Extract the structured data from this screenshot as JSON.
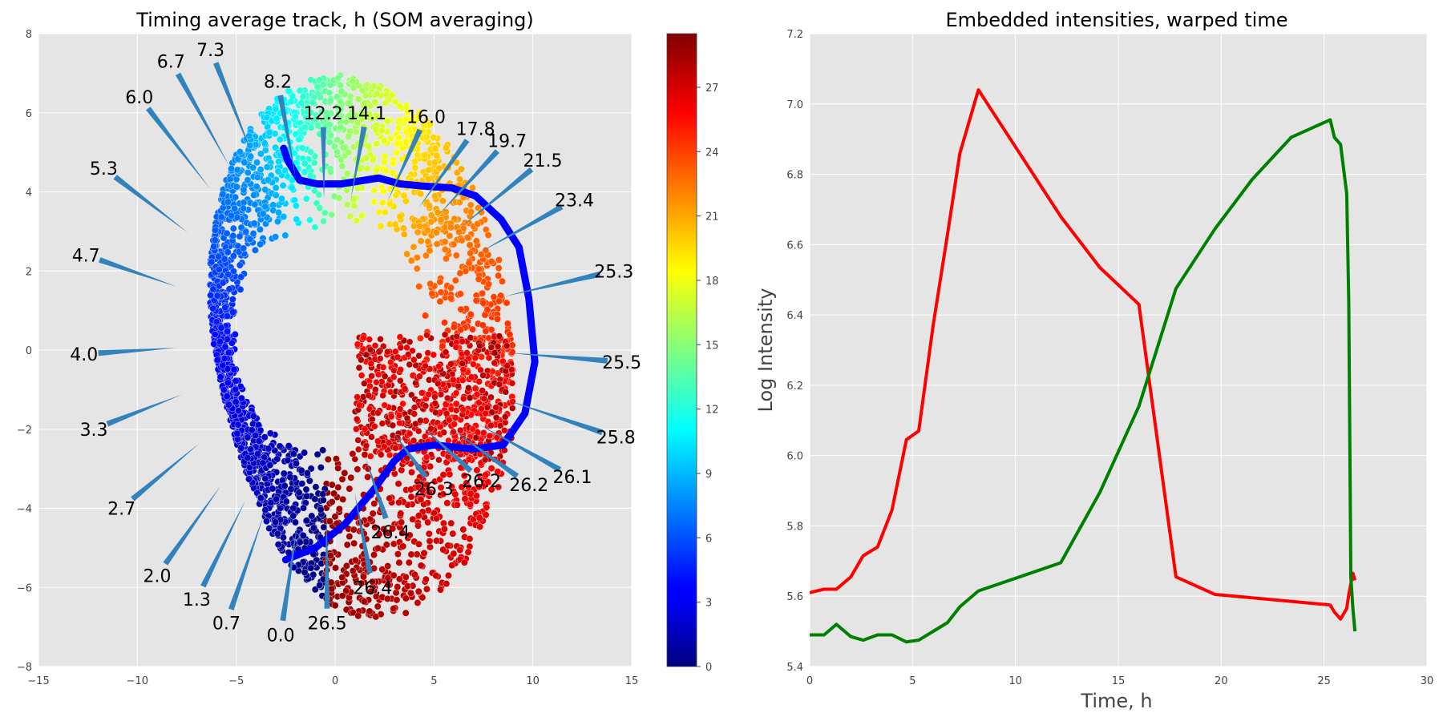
{
  "chart_data": [
    {
      "type": "scatter",
      "title": "Timing average track, h (SOM averaging)",
      "xlim": [
        -15,
        15
      ],
      "ylim": [
        -8,
        8
      ],
      "xticks": [
        "−15",
        "−10",
        "−5",
        "0",
        "5",
        "10",
        "15"
      ],
      "yticks": [
        "−8",
        "−6",
        "−4",
        "−2",
        "0",
        "2",
        "4",
        "6",
        "8"
      ],
      "background": "#e5e5e5",
      "grid": true,
      "colormap": "jet",
      "colorbar": {
        "range": [
          0,
          29.5
        ],
        "ticks": [
          "0",
          "3",
          "6",
          "9",
          "12",
          "15",
          "18",
          "21",
          "24",
          "27"
        ]
      },
      "track": {
        "color": "#0000ff",
        "x": [
          -2.5,
          -1.0,
          0.5,
          2.0,
          3.0,
          3.7,
          5.0,
          7.0,
          8.5,
          9.6,
          10.1,
          9.8,
          9.3,
          8.4,
          7.1,
          5.9,
          4.4,
          3.3,
          2.2,
          0.3,
          -0.9,
          -1.8,
          -2.4,
          -2.6
        ],
        "y": [
          -5.3,
          -5.0,
          -4.4,
          -3.5,
          -2.8,
          -2.5,
          -2.4,
          -2.5,
          -2.4,
          -1.6,
          -0.3,
          1.3,
          2.6,
          3.3,
          3.9,
          4.1,
          4.15,
          4.2,
          4.35,
          4.2,
          4.2,
          4.3,
          4.8,
          5.1
        ]
      },
      "annotations": [
        {
          "label": "0.0",
          "x": -2.75,
          "y": -7.2
        },
        {
          "label": "0.7",
          "x": -5.5,
          "y": -6.9
        },
        {
          "label": "1.3",
          "x": -7.0,
          "y": -6.3
        },
        {
          "label": "2.0",
          "x": -9.0,
          "y": -5.7
        },
        {
          "label": "2.7",
          "x": -10.8,
          "y": -4.0
        },
        {
          "label": "3.3",
          "x": -12.2,
          "y": -2.0
        },
        {
          "label": "4.0",
          "x": -12.7,
          "y": -0.1
        },
        {
          "label": "4.7",
          "x": -12.6,
          "y": 2.4
        },
        {
          "label": "5.3",
          "x": -11.7,
          "y": 4.6
        },
        {
          "label": "6.0",
          "x": -9.9,
          "y": 6.4
        },
        {
          "label": "6.7",
          "x": -8.3,
          "y": 7.3
        },
        {
          "label": "7.3",
          "x": -6.3,
          "y": 7.6
        },
        {
          "label": "8.2",
          "x": -2.9,
          "y": 6.8
        },
        {
          "label": "12.2",
          "x": -0.6,
          "y": 6.0
        },
        {
          "label": "14.1",
          "x": 1.6,
          "y": 6.0
        },
        {
          "label": "16.0",
          "x": 4.6,
          "y": 5.9
        },
        {
          "label": "17.8",
          "x": 7.1,
          "y": 5.6
        },
        {
          "label": "19.7",
          "x": 8.7,
          "y": 5.3
        },
        {
          "label": "21.5",
          "x": 10.5,
          "y": 4.8
        },
        {
          "label": "23.4",
          "x": 12.1,
          "y": 3.8
        },
        {
          "label": "25.3",
          "x": 14.1,
          "y": 2.0
        },
        {
          "label": "25.5",
          "x": 14.5,
          "y": -0.3
        },
        {
          "label": "25.8",
          "x": 14.2,
          "y": -2.2
        },
        {
          "label": "26.1",
          "x": 12.0,
          "y": -3.2
        },
        {
          "label": "26.2",
          "x": 9.8,
          "y": -3.4
        },
        {
          "label": "26.2",
          "x": 7.4,
          "y": -3.3
        },
        {
          "label": "26.3",
          "x": 5.0,
          "y": -3.5
        },
        {
          "label": "26.4",
          "x": 2.8,
          "y": -4.6
        },
        {
          "label": "26.4",
          "x": 1.9,
          "y": -6.0
        },
        {
          "label": "26.5",
          "x": -0.4,
          "y": -6.9
        }
      ]
    },
    {
      "type": "line",
      "title": "Embedded intensities, warped time",
      "xlabel": "Time, h",
      "ylabel": "Log Intensity",
      "xlim": [
        0,
        30
      ],
      "ylim": [
        5.4,
        7.2
      ],
      "xticks": [
        "0",
        "5",
        "10",
        "15",
        "20",
        "25",
        "30"
      ],
      "yticks": [
        "5.4",
        "5.6",
        "5.8",
        "6.0",
        "6.2",
        "6.4",
        "6.6",
        "6.8",
        "7.0",
        "7.2"
      ],
      "background": "#e5e5e5",
      "grid": true,
      "series": [
        {
          "color": "#ff0000",
          "x": [
            0.0,
            0.7,
            1.3,
            2.0,
            2.6,
            3.3,
            4.0,
            4.7,
            5.3,
            6.0,
            6.7,
            7.3,
            8.2,
            12.2,
            14.1,
            16.0,
            17.8,
            19.7,
            25.3,
            25.5,
            25.8,
            26.1,
            26.2,
            26.3,
            26.4,
            26.5
          ],
          "y": [
            5.61,
            5.62,
            5.62,
            5.655,
            5.715,
            5.74,
            5.845,
            6.045,
            6.07,
            6.37,
            6.63,
            6.86,
            7.04,
            6.68,
            6.535,
            6.43,
            5.655,
            5.605,
            5.575,
            5.555,
            5.535,
            5.565,
            5.605,
            5.635,
            5.665,
            5.645
          ]
        },
        {
          "color": "#008000",
          "x": [
            0.0,
            0.7,
            1.3,
            2.0,
            2.6,
            3.3,
            4.0,
            4.7,
            5.3,
            6.0,
            6.7,
            7.3,
            8.2,
            12.2,
            14.1,
            16.0,
            17.8,
            19.7,
            21.5,
            23.4,
            25.3,
            25.5,
            25.8,
            26.1,
            26.2,
            26.3,
            26.4,
            26.5
          ],
          "y": [
            5.49,
            5.49,
            5.52,
            5.485,
            5.475,
            5.49,
            5.49,
            5.47,
            5.475,
            5.5,
            5.525,
            5.57,
            5.615,
            5.695,
            5.895,
            6.14,
            6.475,
            6.645,
            6.785,
            6.905,
            6.955,
            6.905,
            6.885,
            6.745,
            6.435,
            5.655,
            5.565,
            5.5
          ]
        }
      ]
    }
  ]
}
